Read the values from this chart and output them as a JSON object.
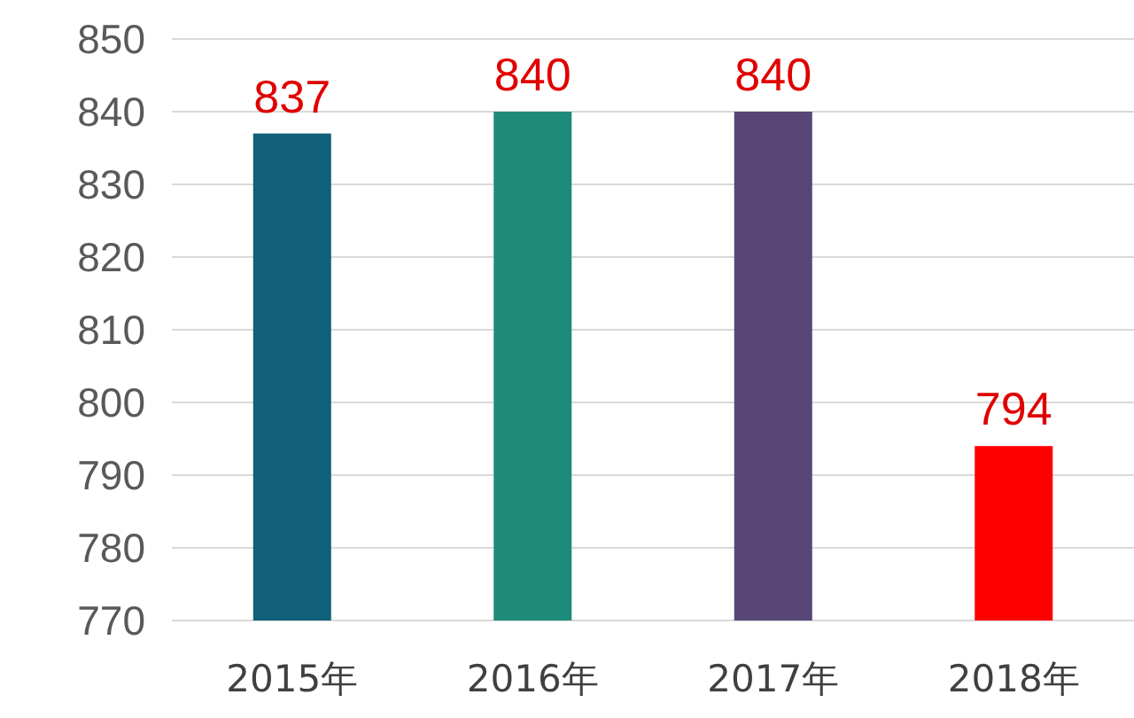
{
  "chart_data": {
    "type": "bar",
    "categories": [
      "2015年",
      "2016年",
      "2017年",
      "2018年"
    ],
    "values": [
      837,
      840,
      840,
      794
    ],
    "colors": [
      "#0f6078",
      "#1e8a7a",
      "#574676",
      "#ff0000"
    ],
    "ylim": [
      770,
      850
    ],
    "yticks": [
      770,
      780,
      790,
      800,
      810,
      820,
      830,
      840,
      850
    ],
    "grid": "y",
    "data_labels": true
  }
}
